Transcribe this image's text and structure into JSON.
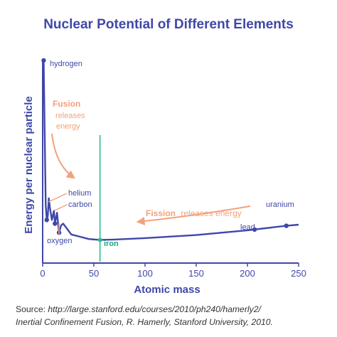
{
  "source": {
    "lead": "Source: ",
    "text": "http://large.stanford.edu/courses/2010/ph240/hamerly2/",
    "line2": "Inertial Confinement Fusion, R. Hamerly, Stanford University, 2010."
  },
  "colors": {
    "curve": "#3f47a8",
    "iron_line": "#2ebd8c",
    "annotation": "#f2a27b"
  },
  "chart_data": {
    "type": "line",
    "title": "Nuclear Potential of Different Elements",
    "xlabel": "Atomic mass",
    "ylabel": "Energy per nuclear particle",
    "xlim": [
      0,
      250
    ],
    "xticks": [
      0,
      50,
      100,
      150,
      200,
      250
    ],
    "x": [
      1,
      3,
      4,
      5,
      6,
      7,
      9,
      11,
      12,
      14,
      16,
      18,
      20,
      24,
      28,
      35,
      45,
      56,
      70,
      100,
      150,
      200,
      238,
      250
    ],
    "y": [
      1.0,
      0.2,
      0.12,
      0.14,
      0.24,
      0.19,
      0.12,
      0.17,
      0.1,
      0.16,
      0.05,
      0.09,
      0.1,
      0.07,
      0.04,
      0.03,
      0.015,
      0.01,
      0.012,
      0.02,
      0.037,
      0.063,
      0.088,
      0.094
    ],
    "points": [
      {
        "element": "hydrogen",
        "x": 1,
        "y": 1.0
      },
      {
        "element": "helium",
        "x": 4,
        "y": 0.12
      },
      {
        "element": "carbon",
        "x": 12,
        "y": 0.1
      },
      {
        "element": "oxygen",
        "x": 16,
        "y": 0.05
      },
      {
        "element": "iron",
        "x": 56,
        "y": 0.01
      },
      {
        "element": "lead",
        "x": 207,
        "y": 0.067
      },
      {
        "element": "uranium",
        "x": 238,
        "y": 0.088
      }
    ],
    "vline": {
      "x": 56,
      "label": "iron"
    },
    "annotations": [
      {
        "title": "Fusion",
        "line2": "releases",
        "line3": "energy"
      },
      {
        "title": "Fission",
        "rest": "releases energy"
      }
    ]
  }
}
